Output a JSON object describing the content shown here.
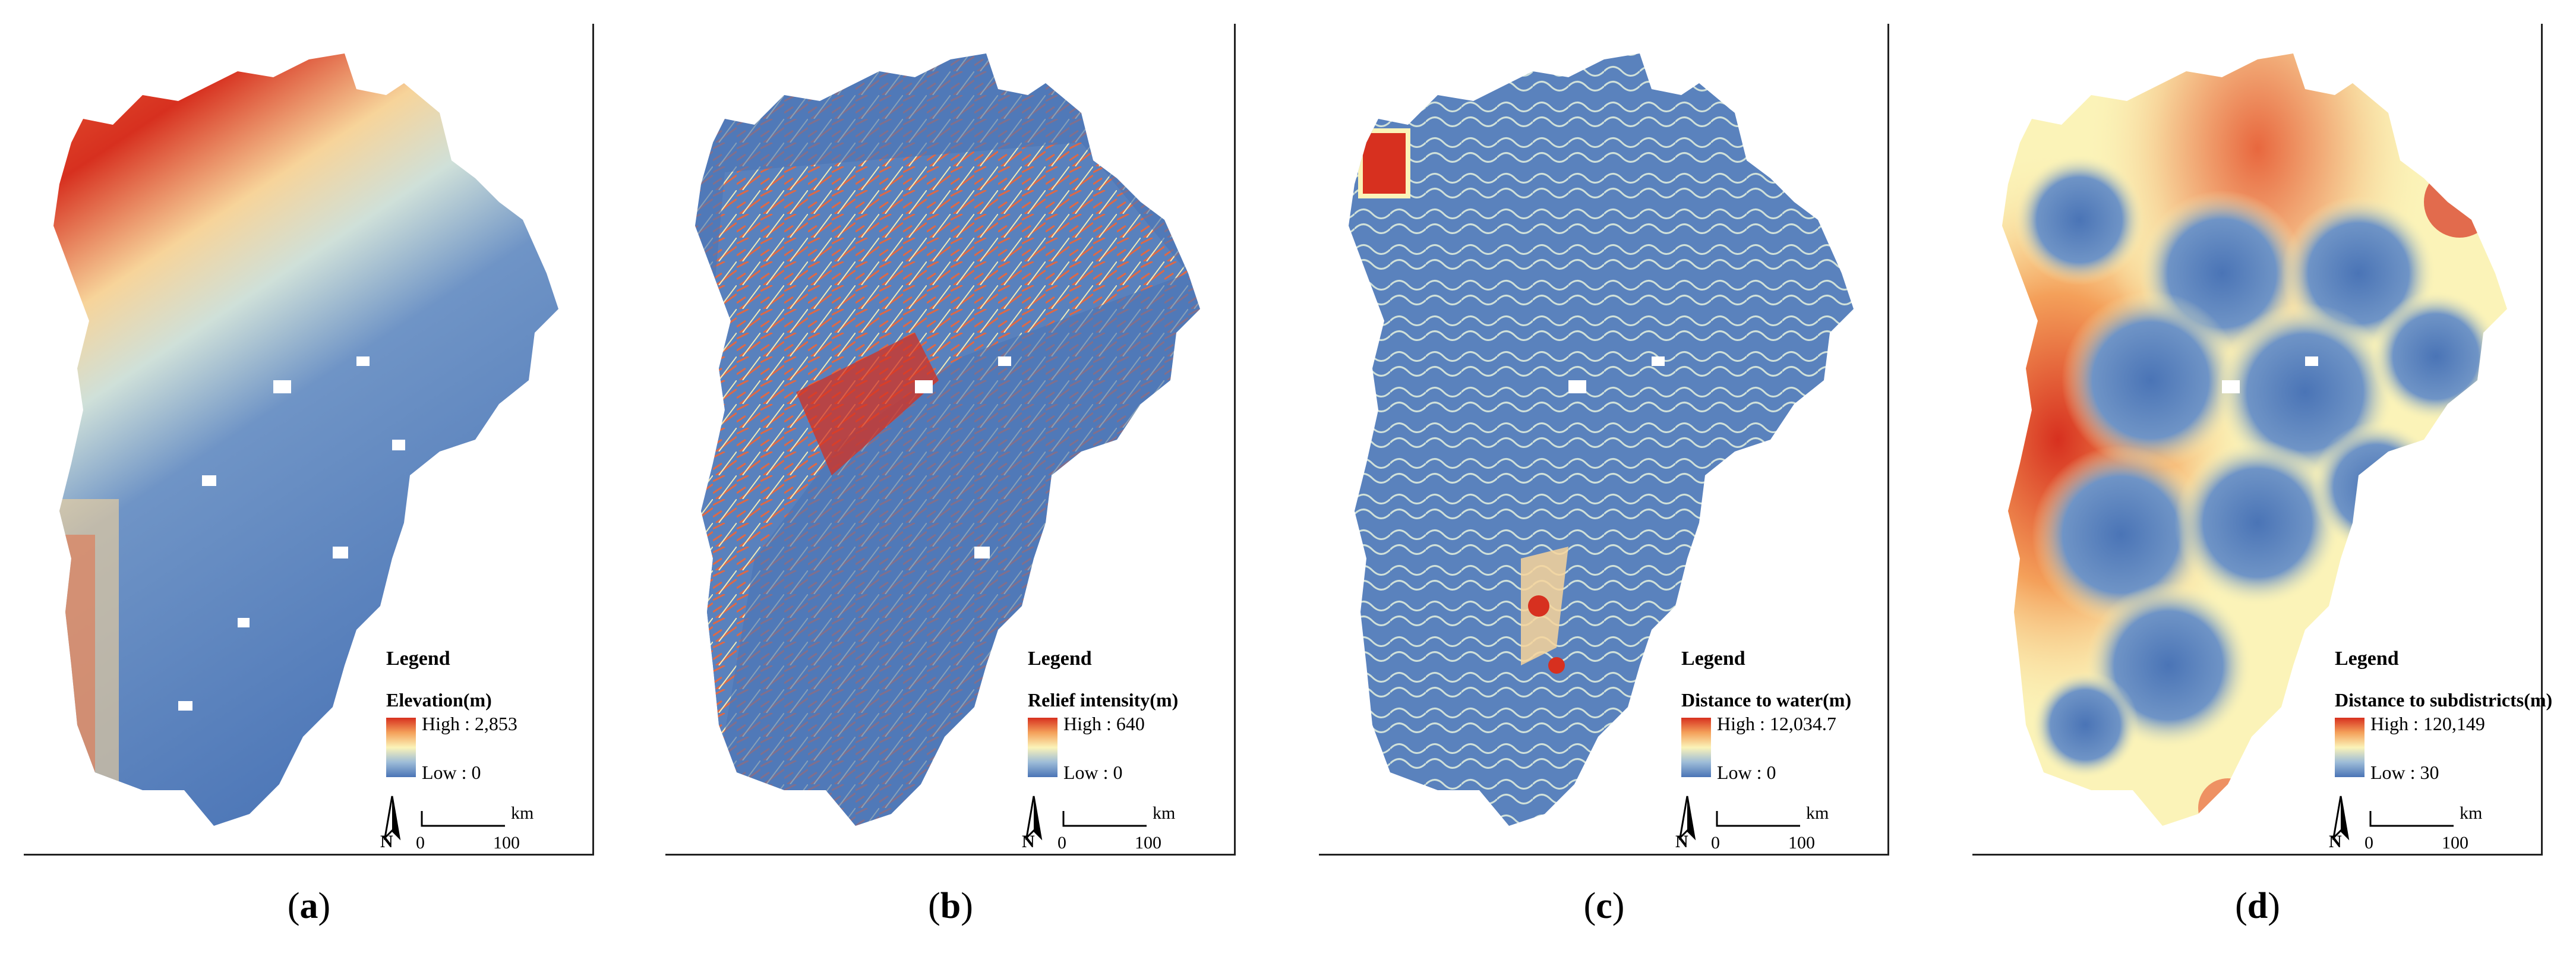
{
  "colors": {
    "high": "#d7301f",
    "mid_high": "#f4a05a",
    "mid": "#fbf3b8",
    "mid_low": "#9dbcd8",
    "low": "#4a74b6"
  },
  "panels": [
    {
      "caption_letter": "a",
      "legend_title": "Legend",
      "field": "Elevation(m)",
      "high_label": "High : 2,853",
      "low_label": "Low : 0",
      "north": "N",
      "scale_zero": "0",
      "scale_max": "100",
      "scale_unit": "km"
    },
    {
      "caption_letter": "b",
      "legend_title": "Legend",
      "field": "Relief intensity(m)",
      "high_label": "High : 640",
      "low_label": "Low : 0",
      "north": "N",
      "scale_zero": "0",
      "scale_max": "100",
      "scale_unit": "km"
    },
    {
      "caption_letter": "c",
      "legend_title": "Legend",
      "field": "Distance to water(m)",
      "high_label": "High : 12,034.7",
      "low_label": "Low : 0",
      "north": "N",
      "scale_zero": "0",
      "scale_max": "100",
      "scale_unit": "km"
    },
    {
      "caption_letter": "d",
      "legend_title": "Legend",
      "field": "Distance to subdistricts(m)",
      "high_label": "High : 120,149",
      "low_label": "Low : 30",
      "north": "N",
      "scale_zero": "0",
      "scale_max": "100",
      "scale_unit": "km"
    }
  ]
}
